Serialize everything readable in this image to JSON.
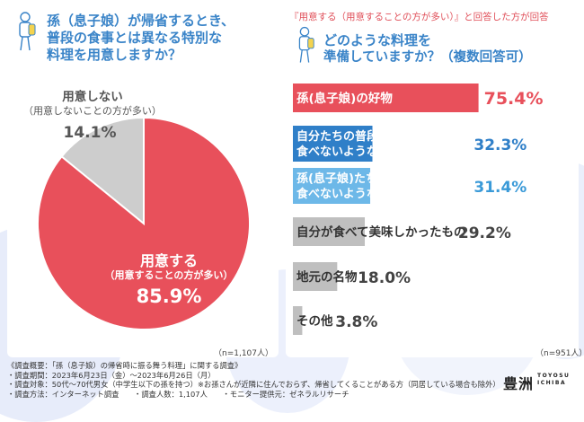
{
  "left_panel": {
    "question_lines": [
      "孫（息子娘）が帰省するとき、",
      "普段の食事とは異なる特別な",
      "料理を用意しますか？"
    ],
    "sample_size": "（n=1,107人）"
  },
  "right_panel": {
    "subheading": "『用意する（用意することの方が多い）』と回答した方が回答",
    "question_lines": [
      "どのような料理を",
      "準備していますか？（複数回答可）"
    ],
    "sample_size": "（n=951人）"
  },
  "footer": {
    "lines": [
      "《調査概要：「孫（息子娘）の帰省時に振る舞う料理」に関する調査》",
      "・調査期間：2023年6月23日（金）〜2023年6月26日（月）",
      "・調査対象：50代〜70代男女（中学生以下の孫を持つ）※お孫さんが近隣に住んでおらず、帰省してくることがある方（同居している場合も除外）",
      "・調査方法：インターネット調査　　・調査人数：1,107人　　・モニター提供元：ゼネラルリサーチ"
    ]
  },
  "logo": {
    "kanji": "豊洲",
    "roman_top": "TOYOSU",
    "roman_bottom": "ICHIBA"
  },
  "chart_data": [
    {
      "type": "pie",
      "title": "孫（息子娘）が帰省するとき、普段の食事とは異なる特別な料理を用意しますか？",
      "slices": [
        {
          "label": "用意する",
          "sublabel": "（用意することの方が多い）",
          "value": 85.9,
          "value_text": "85.9%",
          "color": "#e8505b"
        },
        {
          "label": "用意しない",
          "sublabel": "（用意しないことの方が多い）",
          "value": 14.1,
          "value_text": "14.1%",
          "color": "#cdcdcd"
        }
      ]
    },
    {
      "type": "bar",
      "orientation": "horizontal",
      "title": "どのような料理を準備していますか？（複数回答可）",
      "categories": [
        [
          "孫(息子娘)の好物"
        ],
        [
          "自分たちの普段の食事では",
          "食べないような良い(豪華)なもの"
        ],
        [
          "孫(息子娘)たちの普段の食事では",
          "食べないような良い(豪華)なもの"
        ],
        [
          "自分が食べて美味しかったもの"
        ],
        [
          "地元の名物"
        ],
        [
          "その他"
        ]
      ],
      "values": [
        75.4,
        32.3,
        31.4,
        29.2,
        18.0,
        3.8
      ],
      "value_labels": [
        "75.4%",
        "32.3%",
        "31.4%",
        "29.2%",
        "18.0%",
        "3.8%"
      ],
      "colors": [
        "#e8505b",
        "#2f7fc8",
        "#6db8e8",
        "#bfbfbf",
        "#bfbfbf",
        "#bfbfbf"
      ],
      "value_colors": [
        "#e8505b",
        "#2f7fc8",
        "#3a9ad8",
        "#444444",
        "#444444",
        "#444444"
      ],
      "xlim": [
        0,
        100
      ]
    }
  ]
}
